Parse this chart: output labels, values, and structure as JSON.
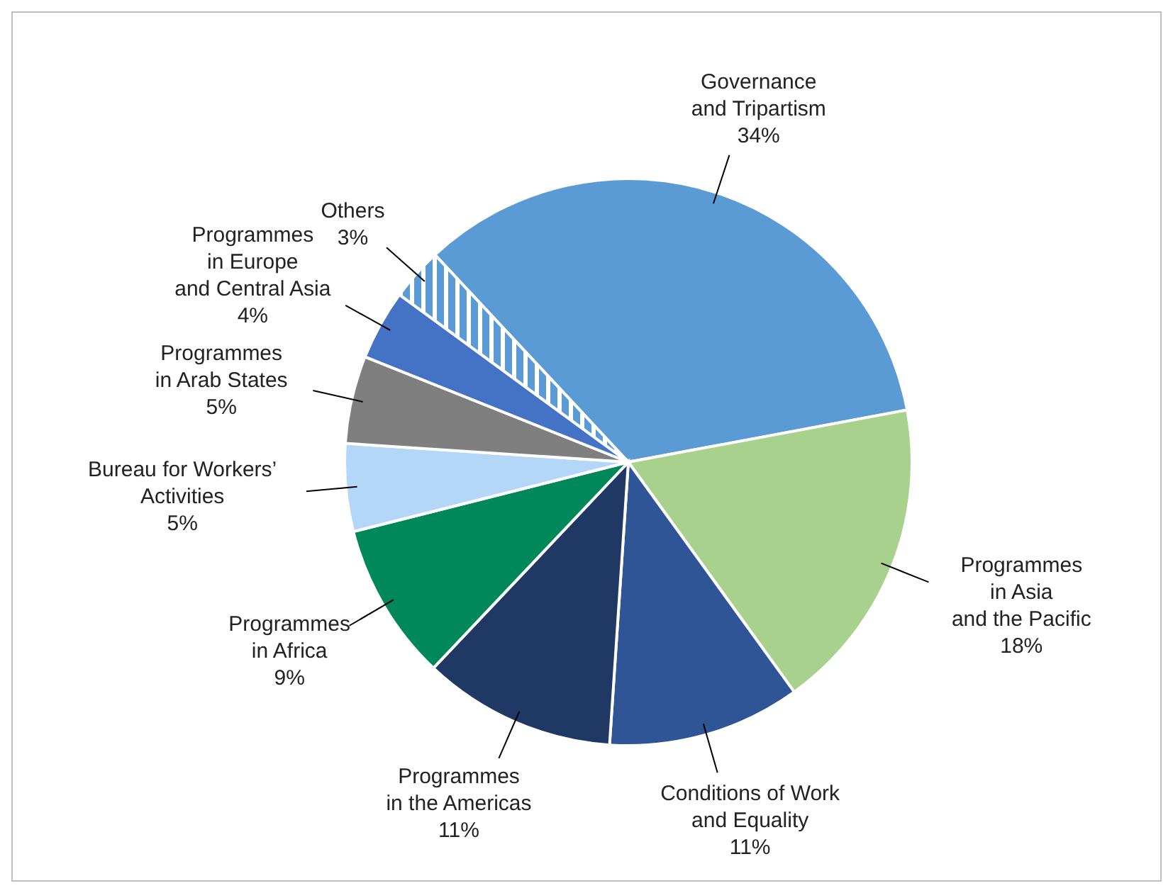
{
  "chart_data": {
    "type": "pie",
    "categories": [
      "Governance\nand Tripartism",
      "Programmes\nin Asia\nand the Pacific",
      "Conditions of Work\nand Equality",
      "Programmes\nin the Americas",
      "Programmes\nin Africa",
      "Bureau for Workers’\nActivities",
      "Programmes\nin Arab States",
      "Programmes\nin Europe\nand Central Asia",
      "Others"
    ],
    "values": [
      34,
      18,
      11,
      11,
      9,
      5,
      5,
      4,
      3
    ],
    "value_labels": [
      "34%",
      "18%",
      "11%",
      "11%",
      "9%",
      "5%",
      "5%",
      "4%",
      "3%"
    ],
    "colors": [
      "#5b9bd5",
      "#a9d18e",
      "#2f5597",
      "#1f3864",
      "#00875a",
      "#b4d7f8",
      "#7f7f7f",
      "#4472c4",
      "#5b9bd5"
    ],
    "legend": false
  }
}
